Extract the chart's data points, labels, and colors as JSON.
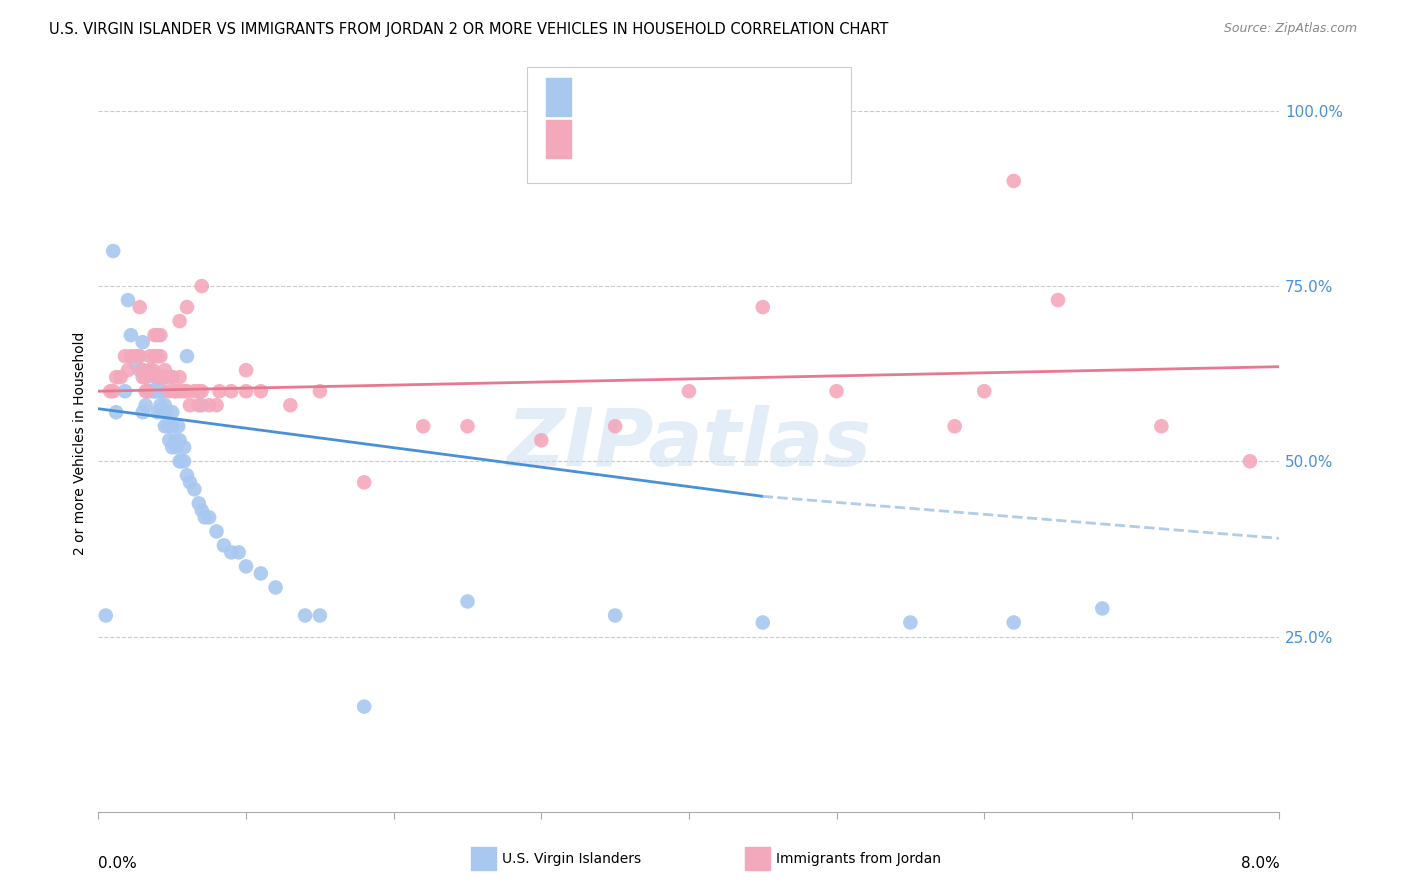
{
  "title": "U.S. VIRGIN ISLANDER VS IMMIGRANTS FROM JORDAN 2 OR MORE VEHICLES IN HOUSEHOLD CORRELATION CHART",
  "source": "Source: ZipAtlas.com",
  "ylabel": "2 or more Vehicles in Household",
  "xlim": [
    0.0,
    8.0
  ],
  "ylim": [
    0.0,
    105.0
  ],
  "color_vi": "#a8c8f0",
  "color_jordan": "#f4a8bc",
  "color_vi_line": "#4a90d9",
  "color_jordan_line": "#e87890",
  "color_vi_dash": "#b0cce8",
  "watermark": "ZIPatlas",
  "blue_scatter_x": [
    0.05,
    0.12,
    0.18,
    0.22,
    0.25,
    0.28,
    0.3,
    0.3,
    0.32,
    0.33,
    0.35,
    0.35,
    0.37,
    0.38,
    0.38,
    0.4,
    0.4,
    0.4,
    0.42,
    0.42,
    0.43,
    0.44,
    0.45,
    0.45,
    0.46,
    0.47,
    0.48,
    0.48,
    0.5,
    0.5,
    0.5,
    0.52,
    0.53,
    0.54,
    0.55,
    0.55,
    0.56,
    0.58,
    0.58,
    0.6,
    0.62,
    0.65,
    0.68,
    0.7,
    0.72,
    0.75,
    0.8,
    0.85,
    0.9,
    0.95,
    1.0,
    1.1,
    1.2,
    1.4,
    1.5,
    1.8,
    2.5,
    3.5,
    4.5,
    5.5,
    6.2,
    6.8,
    0.1,
    0.2,
    0.3,
    0.4,
    0.5,
    0.32,
    0.38,
    0.42,
    0.6,
    0.7
  ],
  "blue_scatter_y": [
    28,
    57,
    60,
    68,
    64,
    63,
    63,
    67,
    62,
    60,
    60,
    63,
    60,
    60,
    62,
    57,
    60,
    62,
    58,
    60,
    57,
    60,
    55,
    58,
    57,
    55,
    55,
    53,
    52,
    55,
    57,
    53,
    52,
    55,
    50,
    53,
    50,
    50,
    52,
    48,
    47,
    46,
    44,
    43,
    42,
    42,
    40,
    38,
    37,
    37,
    35,
    34,
    32,
    28,
    28,
    15,
    30,
    28,
    27,
    27,
    27,
    29,
    80,
    73,
    57,
    68,
    62,
    58,
    60,
    62,
    65,
    58
  ],
  "pink_scatter_x": [
    0.08,
    0.1,
    0.12,
    0.15,
    0.18,
    0.2,
    0.22,
    0.25,
    0.27,
    0.28,
    0.3,
    0.3,
    0.32,
    0.33,
    0.35,
    0.35,
    0.37,
    0.38,
    0.4,
    0.4,
    0.42,
    0.42,
    0.43,
    0.44,
    0.45,
    0.45,
    0.48,
    0.5,
    0.52,
    0.55,
    0.55,
    0.58,
    0.6,
    0.62,
    0.65,
    0.68,
    0.7,
    0.75,
    0.82,
    0.9,
    1.0,
    1.1,
    1.3,
    1.5,
    1.8,
    2.2,
    2.5,
    3.0,
    4.0,
    4.5,
    5.0,
    6.0,
    6.5,
    7.2,
    7.8,
    0.28,
    0.38,
    0.42,
    0.55,
    0.6,
    0.7,
    0.8,
    1.0,
    3.5,
    5.8,
    6.2,
    0.32,
    0.44,
    0.52,
    0.68
  ],
  "pink_scatter_y": [
    60,
    60,
    62,
    62,
    65,
    63,
    65,
    65,
    65,
    65,
    62,
    63,
    62,
    60,
    63,
    65,
    63,
    65,
    62,
    65,
    62,
    65,
    62,
    62,
    62,
    63,
    60,
    62,
    60,
    60,
    62,
    60,
    60,
    58,
    60,
    60,
    60,
    58,
    60,
    60,
    60,
    60,
    58,
    60,
    47,
    55,
    55,
    53,
    60,
    72,
    60,
    60,
    73,
    55,
    50,
    72,
    68,
    68,
    70,
    72,
    75,
    58,
    63,
    55,
    55,
    90,
    60,
    62,
    60,
    58
  ]
}
